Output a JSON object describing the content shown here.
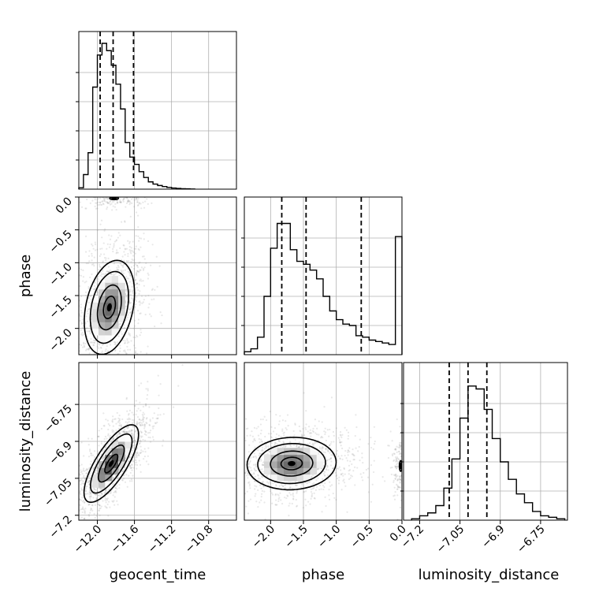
{
  "chart_data": {
    "type": "corner",
    "parameters": [
      "geocent_time",
      "phase",
      "luminosity_distance"
    ],
    "grid": true,
    "colors": {
      "line": "#000000",
      "quantile": "#000000",
      "grid": "#b0b0b0",
      "scatter": "#808080"
    },
    "panels": [
      {
        "kind": "hist",
        "param": "geocent_time",
        "xlim": [
          -12.2,
          -10.5
        ],
        "xticks": [
          -12.0,
          -11.6,
          -11.2,
          -10.8
        ],
        "ylim": [
          0,
          1
        ],
        "bins": [
          [
            -12.2,
            0.01
          ],
          [
            -12.15,
            0.1
          ],
          [
            -12.1,
            0.25
          ],
          [
            -12.05,
            0.7
          ],
          [
            -12.0,
            0.92
          ],
          [
            -11.95,
            1.0
          ],
          [
            -11.9,
            0.95
          ],
          [
            -11.85,
            0.85
          ],
          [
            -11.8,
            0.72
          ],
          [
            -11.75,
            0.55
          ],
          [
            -11.7,
            0.32
          ],
          [
            -11.65,
            0.22
          ],
          [
            -11.6,
            0.17
          ],
          [
            -11.55,
            0.12
          ],
          [
            -11.5,
            0.08
          ],
          [
            -11.45,
            0.05
          ],
          [
            -11.4,
            0.035
          ],
          [
            -11.35,
            0.025
          ],
          [
            -11.3,
            0.018
          ],
          [
            -11.25,
            0.012
          ],
          [
            -11.2,
            0.008
          ],
          [
            -11.15,
            0.005
          ],
          [
            -11.1,
            0.003
          ],
          [
            -11.05,
            0.002
          ],
          [
            -11.0,
            0.001
          ]
        ],
        "bin_width": 0.05,
        "quantiles": [
          -11.97,
          -11.83,
          -11.61
        ]
      },
      {
        "kind": "hist",
        "param": "phase",
        "xlim": [
          -2.4,
          0.0
        ],
        "xticks": [
          -2.0,
          -1.5,
          -1.0,
          -0.5,
          0.0
        ],
        "ylim": [
          0,
          1
        ],
        "bins": [
          [
            -2.4,
            0.02
          ],
          [
            -2.3,
            0.04
          ],
          [
            -2.2,
            0.12
          ],
          [
            -2.1,
            0.4
          ],
          [
            -2.0,
            0.73
          ],
          [
            -1.9,
            0.9
          ],
          [
            -1.8,
            0.9
          ],
          [
            -1.7,
            0.72
          ],
          [
            -1.6,
            0.64
          ],
          [
            -1.5,
            0.62
          ],
          [
            -1.4,
            0.58
          ],
          [
            -1.3,
            0.52
          ],
          [
            -1.2,
            0.4
          ],
          [
            -1.1,
            0.3
          ],
          [
            -1.0,
            0.24
          ],
          [
            -0.9,
            0.21
          ],
          [
            -0.8,
            0.2
          ],
          [
            -0.7,
            0.13
          ],
          [
            -0.6,
            0.12
          ],
          [
            -0.5,
            0.1
          ],
          [
            -0.4,
            0.09
          ],
          [
            -0.3,
            0.08
          ],
          [
            -0.2,
            0.07
          ],
          [
            -0.1,
            0.81
          ]
        ],
        "bin_width": 0.1,
        "quantiles": [
          -1.83,
          -1.46,
          -0.62
        ]
      },
      {
        "kind": "hist",
        "param": "luminosity_distance",
        "xlim": [
          -7.26,
          -6.65
        ],
        "xticks": [
          -7.2,
          -7.05,
          -6.9,
          -6.75
        ],
        "ylim": [
          0,
          1
        ],
        "bins": [
          [
            -7.23,
            0.01
          ],
          [
            -7.2,
            0.03
          ],
          [
            -7.17,
            0.05
          ],
          [
            -7.14,
            0.1
          ],
          [
            -7.11,
            0.22
          ],
          [
            -7.08,
            0.42
          ],
          [
            -7.05,
            0.7
          ],
          [
            -7.02,
            0.92
          ],
          [
            -6.99,
            0.9
          ],
          [
            -6.96,
            0.76
          ],
          [
            -6.93,
            0.56
          ],
          [
            -6.9,
            0.4
          ],
          [
            -6.87,
            0.28
          ],
          [
            -6.84,
            0.18
          ],
          [
            -6.81,
            0.12
          ],
          [
            -6.78,
            0.06
          ],
          [
            -6.75,
            0.03
          ],
          [
            -6.72,
            0.02
          ],
          [
            -6.69,
            0.01
          ]
        ],
        "bin_width": 0.03,
        "quantiles": [
          -7.09,
          -7.02,
          -6.95
        ]
      },
      {
        "kind": "density",
        "x": "geocent_time",
        "y": "phase",
        "xlim": [
          -12.2,
          -10.5
        ],
        "ylim": [
          -2.4,
          0.0
        ],
        "yticks": [
          0.0,
          -0.5,
          -1.0,
          -1.5,
          -2.0
        ],
        "blobs": [
          {
            "mx": -11.87,
            "my": -1.68,
            "sx": 0.14,
            "sy": 0.37,
            "rho": 0.3,
            "w": 0.85
          },
          {
            "mx": -11.82,
            "my": -0.02,
            "sx": 0.12,
            "sy": 0.05,
            "rho": 0.0,
            "w": 0.15
          }
        ]
      },
      {
        "kind": "density",
        "x": "geocent_time",
        "y": "luminosity_distance",
        "xlim": [
          -12.2,
          -10.5
        ],
        "ylim": [
          -7.22,
          -6.58
        ],
        "yticks": [
          -6.75,
          -6.9,
          -7.05,
          -7.2
        ],
        "blobs": [
          {
            "mx": -11.85,
            "my": -6.99,
            "sx": 0.14,
            "sy": 0.075,
            "rho": 0.75,
            "w": 1.0
          }
        ]
      },
      {
        "kind": "density",
        "x": "phase",
        "y": "luminosity_distance",
        "xlim": [
          -2.4,
          0.0
        ],
        "ylim": [
          -7.22,
          -6.58
        ],
        "yticks": [],
        "blobs": [
          {
            "mx": -1.68,
            "my": -6.99,
            "sx": 0.35,
            "sy": 0.055,
            "rho": 0.05,
            "w": 0.85
          },
          {
            "mx": -0.02,
            "my": -7.0,
            "sx": 0.05,
            "sy": 0.055,
            "rho": 0.0,
            "w": 0.15
          }
        ]
      }
    ]
  }
}
